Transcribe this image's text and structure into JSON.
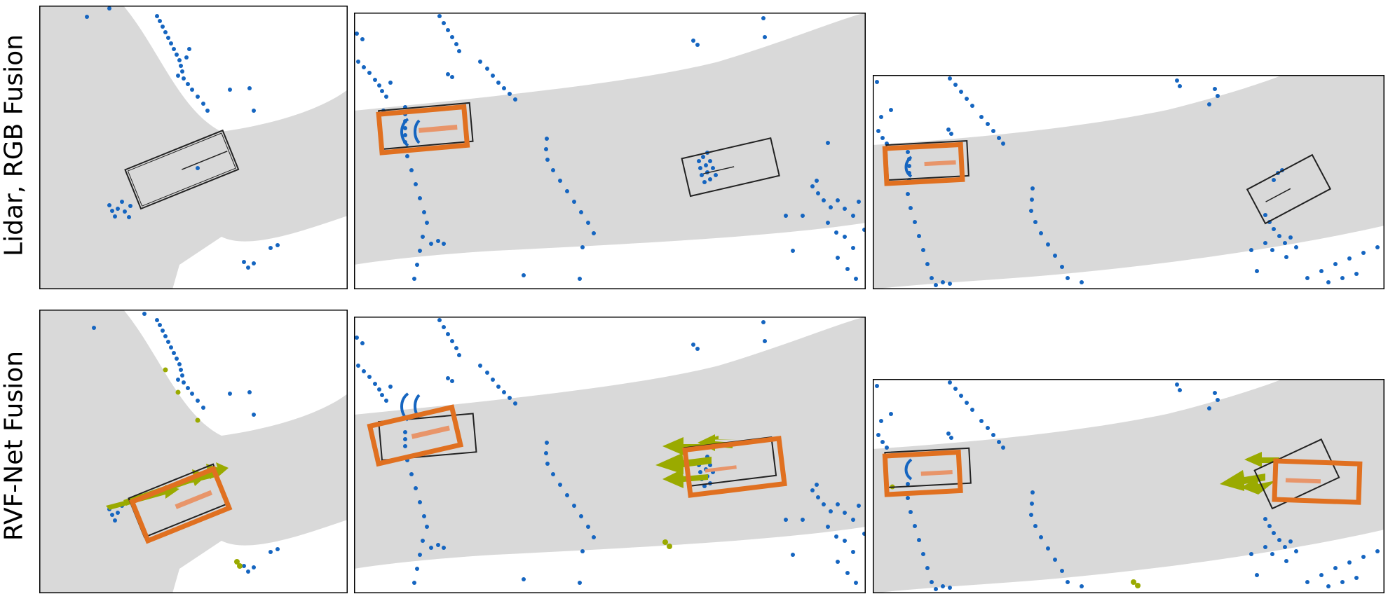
{
  "row_labels": {
    "top": "Lidar, RGB Fusion",
    "bottom": "RVF-Net Fusion"
  },
  "colors": {
    "road": "#d9d9d9",
    "lidar_points": "#1565c0",
    "radar_points": "#9aaa00",
    "prediction_box": "#e07020",
    "ground_truth_box": "#222222"
  }
}
